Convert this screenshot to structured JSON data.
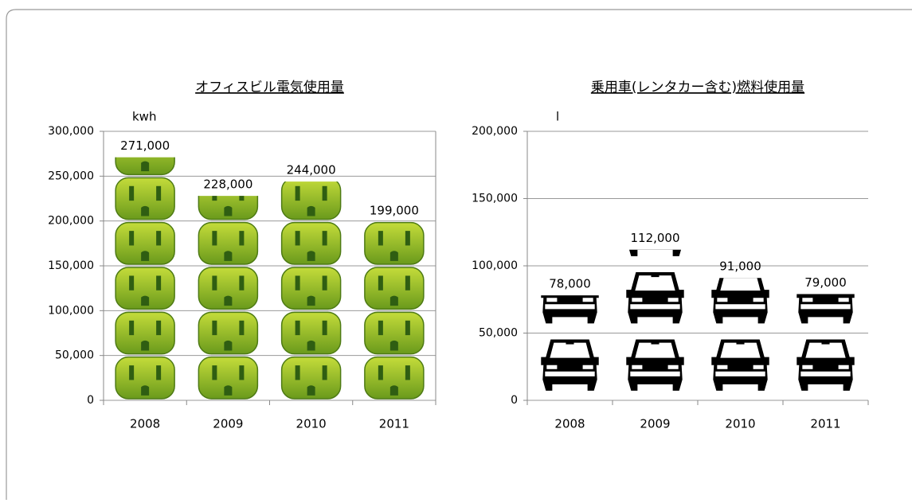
{
  "chart_data": [
    {
      "type": "bar",
      "title": "オフィスビル電気使用量",
      "y_label": "kwh",
      "categories": [
        "2008",
        "2009",
        "2010",
        "2011"
      ],
      "values": [
        271000,
        228000,
        244000,
        199000
      ],
      "value_labels": [
        "271,000",
        "228,000",
        "244,000",
        "199,000"
      ],
      "color": "#8db52a",
      "ylim": [
        0,
        300000
      ],
      "yticks": [
        0,
        {
          "value": 50000,
          "label": "50,000"
        },
        {
          "value": 100000,
          "label": "100,000"
        },
        {
          "value": 150000,
          "label": "150,000"
        },
        {
          "value": 200000,
          "label": "200,000"
        },
        {
          "value": 250000,
          "label": "250,000"
        },
        {
          "value": 300000,
          "label": "300,000"
        }
      ],
      "grid": true,
      "icon": "outlet"
    },
    {
      "type": "bar",
      "title": "乗用車(レンタカー含む)燃料使用量",
      "y_label": "l",
      "categories": [
        "2008",
        "2009",
        "2010",
        "2011"
      ],
      "values": [
        78000,
        112000,
        91000,
        79000
      ],
      "value_labels": [
        "78,000",
        "112,000",
        "91,000",
        "79,000"
      ],
      "color": "#000000",
      "ylim": [
        0,
        200000
      ],
      "yticks": [
        0,
        {
          "value": 50000,
          "label": "50,000"
        },
        {
          "value": 100000,
          "label": "100,000"
        },
        {
          "value": 150000,
          "label": "150,000"
        },
        {
          "value": 200000,
          "label": "200,000"
        }
      ],
      "grid": true,
      "icon": "car"
    }
  ]
}
